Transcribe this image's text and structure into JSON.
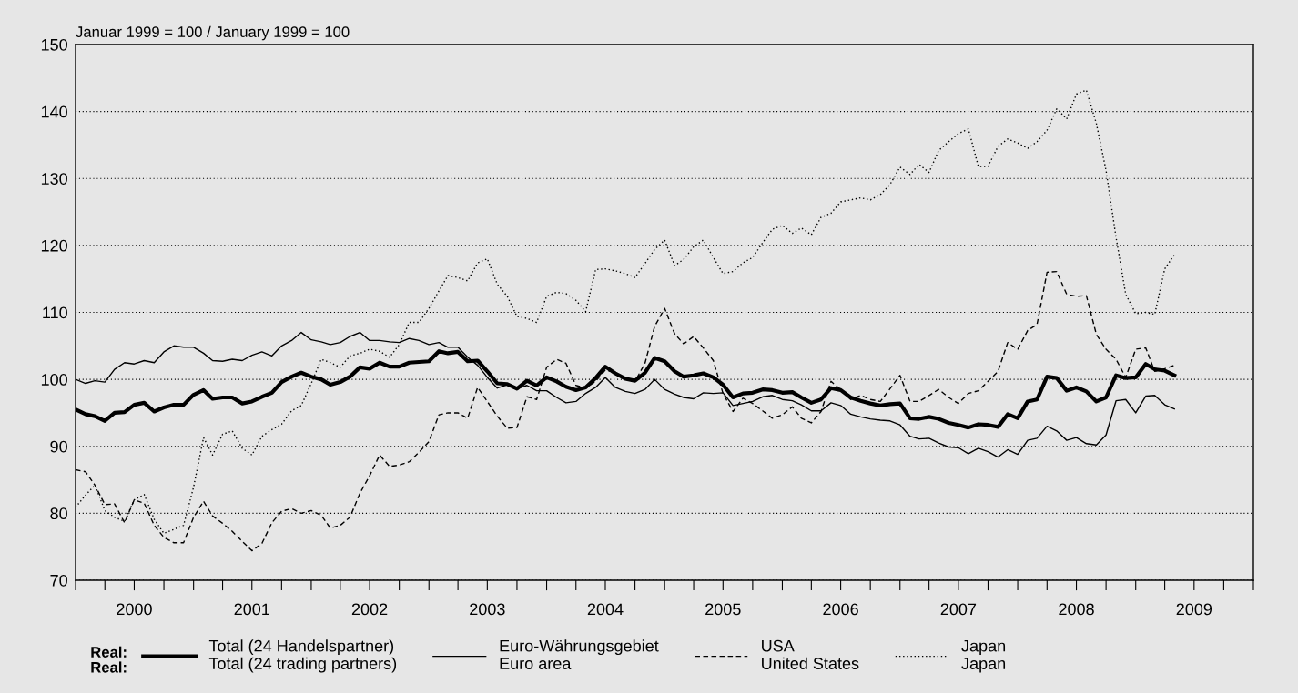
{
  "chart_data": {
    "type": "line",
    "ylabel": "Januar 1999 = 100 / January 1999 = 100",
    "legend_title": "Real:\nReal:",
    "x": [
      "2000-01",
      "2000-02",
      "2000-03",
      "2000-04",
      "2000-05",
      "2000-06",
      "2000-07",
      "2000-08",
      "2000-09",
      "2000-10",
      "2000-11",
      "2000-12",
      "2001-01",
      "2001-02",
      "2001-03",
      "2001-04",
      "2001-05",
      "2001-06",
      "2001-07",
      "2001-08",
      "2001-09",
      "2001-10",
      "2001-11",
      "2001-12",
      "2002-01",
      "2002-02",
      "2002-03",
      "2002-04",
      "2002-05",
      "2002-06",
      "2002-07",
      "2002-08",
      "2002-09",
      "2002-10",
      "2002-11",
      "2002-12",
      "2003-01",
      "2003-02",
      "2003-03",
      "2003-04",
      "2003-05",
      "2003-06",
      "2003-07",
      "2003-08",
      "2003-09",
      "2003-10",
      "2003-11",
      "2003-12",
      "2004-01",
      "2004-02",
      "2004-03",
      "2004-04",
      "2004-05",
      "2004-06",
      "2004-07",
      "2004-08",
      "2004-09",
      "2004-10",
      "2004-11",
      "2004-12",
      "2005-01",
      "2005-02",
      "2005-03",
      "2005-04",
      "2005-05",
      "2005-06",
      "2005-07",
      "2005-08",
      "2005-09",
      "2005-10",
      "2005-11",
      "2005-12",
      "2006-01",
      "2006-02",
      "2006-03",
      "2006-04",
      "2006-05",
      "2006-06",
      "2006-07",
      "2006-08",
      "2006-09",
      "2006-10",
      "2006-11",
      "2006-12",
      "2007-01",
      "2007-02",
      "2007-03",
      "2007-04",
      "2007-05",
      "2007-06",
      "2007-07",
      "2007-08",
      "2007-09",
      "2007-10",
      "2007-11",
      "2007-12",
      "2008-01",
      "2008-02",
      "2008-03",
      "2008-04",
      "2008-05",
      "2008-06",
      "2008-07",
      "2008-08",
      "2008-09",
      "2008-10",
      "2008-11",
      "2008-12",
      "2009-01",
      "2009-02",
      "2009-03",
      "2009-04",
      "2009-05"
    ],
    "series": [
      {
        "name": "Total (24 Handelspartner)\nTotal (24 trading partners)",
        "color": "#000000",
        "line_style": "solid",
        "values": [
          95.5,
          94.8,
          94.5,
          93.8,
          95.0,
          95.1,
          96.2,
          96.5,
          95.2,
          95.8,
          96.2,
          96.2,
          97.7,
          98.4,
          97.1,
          97.3,
          97.3,
          96.4,
          96.7,
          97.4,
          98.0,
          99.6,
          100.4,
          101.0,
          100.4,
          100.0,
          99.2,
          99.6,
          100.4,
          101.8,
          101.6,
          102.5,
          101.9,
          101.9,
          102.5,
          102.6,
          102.7,
          104.2,
          103.9,
          104.1,
          102.7,
          102.8,
          101.2,
          99.4,
          99.3,
          98.6,
          99.8,
          99.1,
          100.3,
          99.7,
          98.9,
          98.4,
          98.8,
          100.2,
          101.9,
          100.9,
          100.1,
          99.8,
          101.0,
          103.2,
          102.7,
          101.2,
          100.4,
          100.6,
          100.9,
          100.3,
          99.2,
          97.3,
          97.9,
          98.0,
          98.5,
          98.4,
          98.0,
          98.1,
          97.3,
          96.5,
          97.0,
          98.7,
          98.4,
          97.3,
          96.8,
          96.4,
          96.1,
          96.3,
          96.4,
          94.2,
          94.1,
          94.4,
          94.1,
          93.5,
          93.2,
          92.8,
          93.3,
          93.2,
          92.9,
          94.8,
          94.2,
          96.7,
          97.0,
          100.4,
          100.2,
          98.3,
          98.8,
          98.2,
          96.7,
          97.3,
          100.6,
          100.2,
          100.3,
          102.3,
          101.5,
          101.3,
          100.6
        ]
      },
      {
        "name": "Euro-Währungsgebiet\nEuro area",
        "color": "#000000",
        "line_style": "solid",
        "values": [
          100.0,
          99.4,
          99.8,
          99.6,
          101.5,
          102.5,
          102.3,
          102.8,
          102.5,
          104.1,
          105.0,
          104.8,
          104.8,
          103.9,
          102.8,
          102.7,
          103.0,
          102.8,
          103.6,
          104.1,
          103.5,
          105.0,
          105.8,
          107.0,
          105.9,
          105.6,
          105.2,
          105.5,
          106.4,
          107.0,
          105.8,
          105.8,
          105.6,
          105.5,
          106.1,
          105.8,
          105.2,
          105.5,
          104.8,
          104.8,
          103.3,
          102.1,
          100.3,
          98.7,
          99.2,
          98.6,
          99.1,
          98.3,
          98.3,
          97.3,
          96.5,
          96.7,
          97.9,
          98.8,
          100.3,
          98.8,
          98.2,
          97.9,
          98.5,
          100.0,
          98.5,
          97.8,
          97.3,
          97.1,
          98.0,
          97.9,
          98.0,
          96.1,
          96.4,
          96.7,
          97.4,
          97.6,
          97.0,
          96.8,
          96.2,
          95.3,
          95.3,
          96.5,
          96.1,
          94.8,
          94.4,
          94.1,
          93.9,
          93.8,
          93.2,
          91.5,
          91.1,
          91.2,
          90.5,
          89.9,
          89.8,
          88.9,
          89.7,
          89.2,
          88.4,
          89.5,
          88.8,
          90.9,
          91.2,
          93.0,
          92.3,
          90.9,
          91.3,
          90.4,
          90.2,
          91.7,
          96.8,
          97.0,
          95.0,
          97.5,
          97.6,
          96.2,
          95.6
        ]
      },
      {
        "name": "USA\nUnited States",
        "color": "#000000",
        "line_style": "dashed",
        "values": [
          86.5,
          86.2,
          84.2,
          81.3,
          81.4,
          78.6,
          82.0,
          81.5,
          78.2,
          76.4,
          75.6,
          75.6,
          79.4,
          81.8,
          79.6,
          78.5,
          77.3,
          75.8,
          74.4,
          75.5,
          78.6,
          80.3,
          80.7,
          80.0,
          80.4,
          79.7,
          77.8,
          78.2,
          79.4,
          83.0,
          85.6,
          88.7,
          87.0,
          87.2,
          87.7,
          89.1,
          90.7,
          94.7,
          95.0,
          95.0,
          94.2,
          98.8,
          96.7,
          94.5,
          92.7,
          92.8,
          97.4,
          97.0,
          101.8,
          103.0,
          102.4,
          99.1,
          98.7,
          99.7,
          101.4,
          101.0,
          100.0,
          99.7,
          102.4,
          107.9,
          110.6,
          106.8,
          105.3,
          106.4,
          104.7,
          102.8,
          97.9,
          95.2,
          97.2,
          96.4,
          95.3,
          94.2,
          94.7,
          95.9,
          94.2,
          93.5,
          95.2,
          99.7,
          98.5,
          97.0,
          97.6,
          97.0,
          96.7,
          98.6,
          100.6,
          96.7,
          96.7,
          97.6,
          98.5,
          97.3,
          96.4,
          97.9,
          98.3,
          99.7,
          101.2,
          105.5,
          104.5,
          107.3,
          108.2,
          116.0,
          116.1,
          112.7,
          112.4,
          112.5,
          106.7,
          104.5,
          103.0,
          100.3,
          104.5,
          104.7,
          101.2,
          101.6,
          102.1
        ]
      },
      {
        "name": "Japan\nJapan",
        "color": "#000000",
        "line_style": "dotted",
        "values": [
          80.9,
          82.7,
          84.2,
          80.4,
          79.4,
          78.8,
          82.0,
          82.8,
          79.1,
          77.0,
          77.6,
          78.2,
          83.9,
          91.3,
          88.7,
          91.8,
          92.3,
          89.7,
          88.7,
          91.5,
          92.5,
          93.3,
          95.3,
          96.1,
          99.4,
          103.0,
          102.5,
          101.8,
          103.5,
          103.9,
          104.5,
          104.2,
          103.3,
          105.2,
          108.5,
          108.5,
          110.6,
          113.2,
          115.5,
          115.2,
          114.7,
          117.4,
          118.0,
          114.2,
          112.4,
          109.4,
          109.1,
          108.5,
          112.4,
          113.0,
          112.8,
          111.8,
          110.1,
          116.4,
          116.5,
          116.2,
          115.8,
          115.2,
          117.3,
          119.4,
          120.8,
          117.0,
          117.9,
          119.8,
          120.8,
          118.2,
          115.8,
          116.1,
          117.4,
          118.2,
          120.4,
          122.4,
          123.0,
          121.8,
          122.6,
          121.6,
          124.2,
          124.8,
          126.5,
          126.8,
          127.1,
          126.8,
          127.6,
          129.1,
          131.7,
          130.6,
          132.1,
          130.9,
          134.2,
          135.5,
          136.7,
          137.4,
          131.8,
          131.8,
          134.8,
          135.9,
          135.3,
          134.5,
          135.5,
          137.2,
          140.4,
          138.9,
          142.6,
          143.2,
          138.2,
          131.2,
          121.2,
          112.7,
          109.8,
          110.0,
          109.7,
          116.5,
          118.6
        ]
      }
    ],
    "xlim": [
      "2000-01-01",
      "2010-01-01"
    ],
    "xticks": [
      {
        "value": "2000-01-01",
        "label": null
      },
      {
        "value": "2000-04-01",
        "label": null
      },
      {
        "value": "2000-07-01",
        "label": "2000"
      },
      {
        "value": "2000-10-01",
        "label": null
      },
      {
        "value": "2001-01-01",
        "label": null
      },
      {
        "value": "2001-04-01",
        "label": null
      },
      {
        "value": "2001-07-01",
        "label": "2001"
      },
      {
        "value": "2001-10-01",
        "label": null
      },
      {
        "value": "2002-01-01",
        "label": null
      },
      {
        "value": "2002-04-01",
        "label": null
      },
      {
        "value": "2002-07-01",
        "label": "2002"
      },
      {
        "value": "2002-10-01",
        "label": null
      },
      {
        "value": "2003-01-01",
        "label": null
      },
      {
        "value": "2003-04-01",
        "label": null
      },
      {
        "value": "2003-07-01",
        "label": "2003"
      },
      {
        "value": "2003-10-01",
        "label": null
      },
      {
        "value": "2004-01-01",
        "label": null
      },
      {
        "value": "2004-04-01",
        "label": null
      },
      {
        "value": "2004-07-01",
        "label": "2004"
      },
      {
        "value": "2004-10-01",
        "label": null
      },
      {
        "value": "2005-01-01",
        "label": null
      },
      {
        "value": "2005-04-01",
        "label": null
      },
      {
        "value": "2005-07-01",
        "label": "2005"
      },
      {
        "value": "2005-10-01",
        "label": null
      },
      {
        "value": "2006-01-01",
        "label": null
      },
      {
        "value": "2006-04-01",
        "label": null
      },
      {
        "value": "2006-07-01",
        "label": "2006"
      },
      {
        "value": "2006-10-01",
        "label": null
      },
      {
        "value": "2007-01-01",
        "label": null
      },
      {
        "value": "2007-04-01",
        "label": null
      },
      {
        "value": "2007-07-01",
        "label": "2007"
      },
      {
        "value": "2007-10-01",
        "label": null
      },
      {
        "value": "2008-01-01",
        "label": null
      },
      {
        "value": "2008-04-01",
        "label": null
      },
      {
        "value": "2008-07-01",
        "label": "2008"
      },
      {
        "value": "2008-10-01",
        "label": null
      },
      {
        "value": "2009-01-01",
        "label": null
      },
      {
        "value": "2009-04-01",
        "label": null
      },
      {
        "value": "2009-07-01",
        "label": "2009"
      },
      {
        "value": "2009-10-01",
        "label": null
      },
      {
        "value": "2010-01-01",
        "label": null
      }
    ],
    "ylim": [
      70,
      150
    ],
    "yticks": [
      70,
      80,
      90,
      100,
      110,
      120,
      130,
      140,
      150
    ],
    "grid": "y",
    "legend": "bottom",
    "marker": "none"
  }
}
